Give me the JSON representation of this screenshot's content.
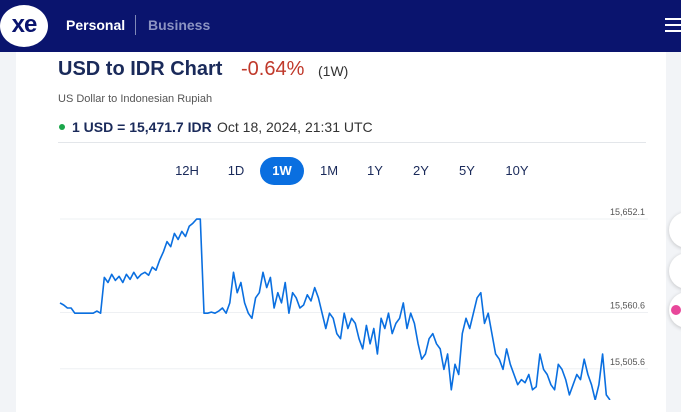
{
  "nav": {
    "logo": "xe",
    "personal": "Personal",
    "business": "Business"
  },
  "header": {
    "title": "USD to IDR Chart",
    "change": "-0.64%",
    "period": "(1W)",
    "subtitle": "US Dollar to Indonesian Rupiah",
    "rate": "1 USD = 15,471.7 IDR",
    "timestamp": "Oct 18, 2024, 21:31 UTC"
  },
  "tabs": [
    "12H",
    "1D",
    "1W",
    "1M",
    "1Y",
    "2Y",
    "5Y",
    "10Y"
  ],
  "active_tab": "1W",
  "colors": {
    "nav_bg": "#0a146e",
    "line": "#0a6fe0",
    "negative": "#c0392b",
    "live_dot": "#1aa64a"
  },
  "chart_data": {
    "type": "line",
    "ylabel_ticks": [
      "15,652.1",
      "15,560.6",
      "15,505.6"
    ],
    "tick_values": [
      15652.1,
      15560.6,
      15505.6
    ],
    "ylim": [
      15477,
      15652.1
    ],
    "grid": true,
    "series": [
      {
        "values": [
          15570,
          15568,
          15565,
          15565,
          15560,
          15560,
          15560,
          15560,
          15560,
          15560,
          15562,
          15560,
          15595,
          15590,
          15598,
          15592,
          15596,
          15590,
          15598,
          15593,
          15600,
          15594,
          15598,
          15600,
          15597,
          15605,
          15602,
          15612,
          15620,
          15630,
          15625,
          15638,
          15632,
          15640,
          15635,
          15645,
          15648,
          15652,
          15652,
          15560,
          15560,
          15561,
          15560,
          15562,
          15565,
          15560,
          15570,
          15600,
          15580,
          15590,
          15570,
          15560,
          15555,
          15575,
          15580,
          15600,
          15585,
          15595,
          15565,
          15580,
          15570,
          15590,
          15560,
          15580,
          15575,
          15565,
          15568,
          15578,
          15572,
          15585,
          15575,
          15560,
          15545,
          15560,
          15555,
          15540,
          15535,
          15560,
          15545,
          15555,
          15550,
          15535,
          15525,
          15548,
          15530,
          15545,
          15520,
          15555,
          15545,
          15560,
          15540,
          15550,
          15555,
          15570,
          15545,
          15560,
          15550,
          15530,
          15515,
          15520,
          15535,
          15540,
          15530,
          15525,
          15505,
          15520,
          15485,
          15510,
          15500,
          15540,
          15555,
          15545,
          15560,
          15575,
          15580,
          15550,
          15560,
          15540,
          15520,
          15515,
          15505,
          15525,
          15510,
          15500,
          15490,
          15495,
          15492,
          15500,
          15485,
          15488,
          15520,
          15505,
          15500,
          15490,
          15485,
          15510,
          15505,
          15495,
          15480,
          15490,
          15500,
          15495,
          15515,
          15500,
          15490,
          15475,
          15490,
          15520,
          15480,
          15475
        ]
      }
    ]
  }
}
